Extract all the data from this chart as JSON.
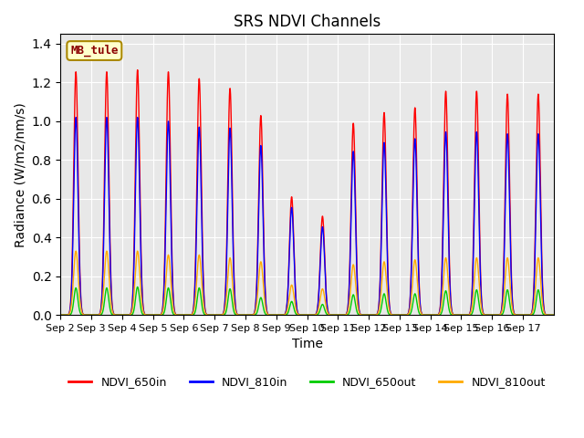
{
  "title": "SRS NDVI Channels",
  "xlabel": "Time",
  "ylabel": "Radiance (W/m2/nm/s)",
  "annotation": "MB_tule",
  "ylim": [
    0.0,
    1.45
  ],
  "legend_labels": [
    "NDVI_650in",
    "NDVI_810in",
    "NDVI_650out",
    "NDVI_810out"
  ],
  "legend_colors": [
    "#ff0000",
    "#0000ff",
    "#00cc00",
    "#ffaa00"
  ],
  "xtick_labels": [
    "Sep 2",
    "Sep 3",
    "Sep 4",
    "Sep 5",
    "Sep 6",
    "Sep 7",
    "Sep 8",
    "Sep 9",
    "Sep 10",
    "Sep 11",
    "Sep 12",
    "Sep 13",
    "Sep 14",
    "Sep 15",
    "Sep 16",
    "Sep 17"
  ],
  "peak_650in": [
    1.255,
    1.255,
    1.265,
    1.255,
    1.22,
    1.17,
    1.03,
    0.61,
    0.51,
    0.99,
    1.045,
    1.07,
    1.155,
    1.155,
    1.14,
    1.14
  ],
  "peak_810in": [
    1.02,
    1.02,
    1.02,
    1.0,
    0.97,
    0.965,
    0.875,
    0.555,
    0.455,
    0.845,
    0.89,
    0.91,
    0.945,
    0.945,
    0.935,
    0.935
  ],
  "peak_650out": [
    0.14,
    0.14,
    0.145,
    0.14,
    0.14,
    0.135,
    0.09,
    0.07,
    0.055,
    0.105,
    0.11,
    0.11,
    0.125,
    0.13,
    0.13,
    0.13
  ],
  "peak_810out": [
    0.33,
    0.33,
    0.33,
    0.31,
    0.31,
    0.295,
    0.275,
    0.155,
    0.135,
    0.26,
    0.275,
    0.285,
    0.295,
    0.295,
    0.295,
    0.295
  ],
  "background_color": "#e8e8e8",
  "figsize": [
    6.4,
    4.8
  ],
  "dpi": 100
}
